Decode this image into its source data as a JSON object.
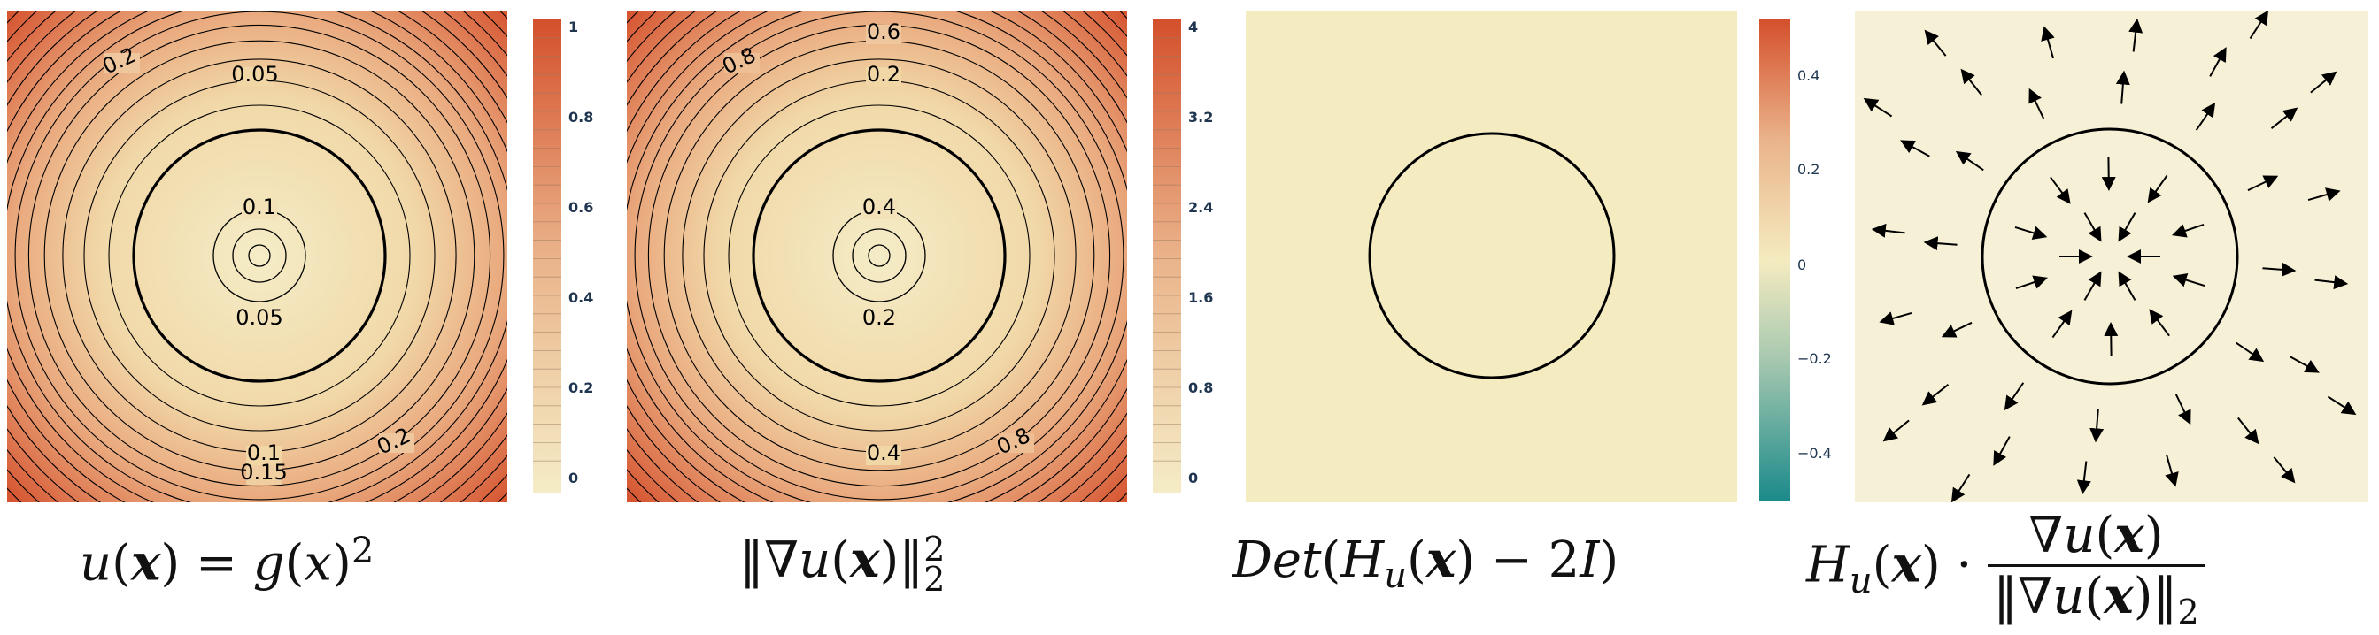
{
  "panels": [
    {
      "id": "u",
      "colorbar": {
        "ticks": [
          "1",
          "0.8",
          "0.6",
          "0.4",
          "0.2",
          "0"
        ]
      },
      "contour_labels": [
        "0.2",
        "0.05",
        "0.1",
        "0.05",
        "0.1",
        "0.15",
        "0.2"
      ],
      "formula": "u(x) = g(x)²"
    },
    {
      "id": "grad",
      "colorbar": {
        "ticks": [
          "4",
          "3.2",
          "2.4",
          "1.6",
          "0.8",
          "0"
        ]
      },
      "contour_labels": [
        "0.6",
        "0.8",
        "0.2",
        "0.4",
        "0.2",
        "0.4",
        "0.8"
      ],
      "formula": "‖∇u(x)‖₂²"
    },
    {
      "id": "det",
      "colorbar": {
        "ticks": [
          "0.4",
          "0.2",
          "0",
          "−0.2",
          "−0.4"
        ]
      },
      "formula": "Det(Hu(x) − 2I)"
    },
    {
      "id": "field",
      "formula": "Hu(x) · ∇u(x) / ‖∇u(x)‖₂"
    }
  ],
  "colors": {
    "field_low": "#f4e9c2",
    "field_high": "#d45a34",
    "diverging_neg": "#1a8a8a",
    "background_panel3": "#f5ebc0",
    "background_panel4": "#f6f0d6"
  },
  "formulas": {
    "f1": {
      "lhs": "u",
      "var": "x",
      "eq": "=",
      "g": "g",
      "gx": "x",
      "pow": "2"
    },
    "f2": {
      "open": "‖∇",
      "u": "u",
      "var": "x",
      "close": "‖",
      "sub": "2",
      "sup": "2"
    },
    "f3": {
      "det": "Det",
      "h": "H",
      "hsub": "u",
      "var": "x",
      "rest": "− 2",
      "i": "I"
    },
    "f4": {
      "h": "H",
      "hsub": "u",
      "var": "x",
      "dot": "·",
      "num": "∇u",
      "den": "‖∇u",
      "den_sub": "2"
    }
  }
}
